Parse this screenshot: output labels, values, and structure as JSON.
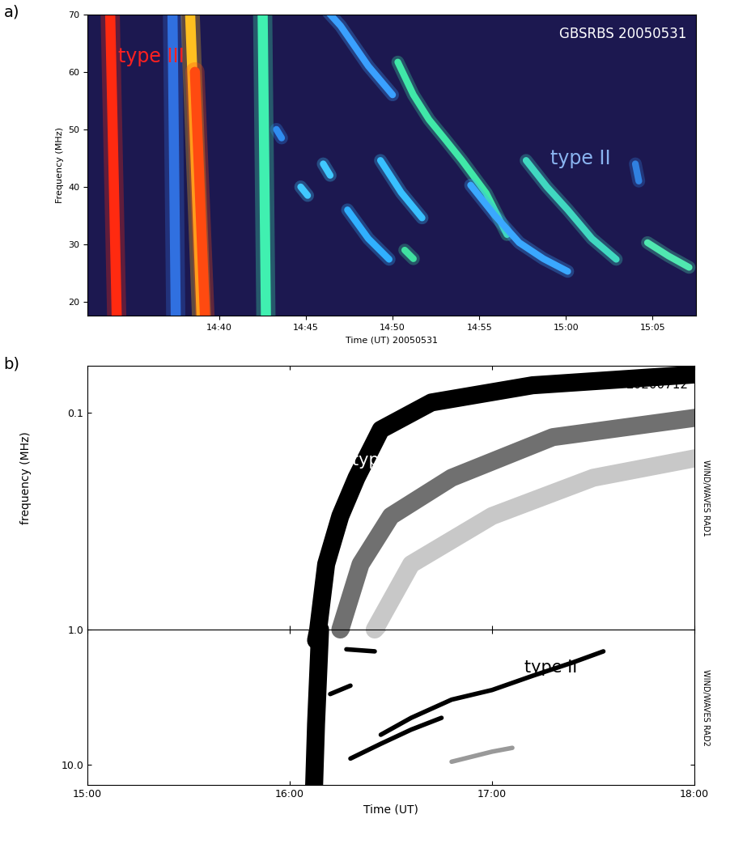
{
  "chart_data": [
    {
      "type": "line",
      "panel_label": "a)",
      "annotation": "GBSRBS 20050531",
      "xlabel": "Time (UT) 20050531",
      "ylabel": "Frequency (MHz)",
      "xlim": [
        32.4,
        67.5
      ],
      "xticks": [
        {
          "value": 40,
          "label": "14:40"
        },
        {
          "value": 45,
          "label": "14:45"
        },
        {
          "value": 50,
          "label": "14:50"
        },
        {
          "value": 55,
          "label": "14:55"
        },
        {
          "value": 60,
          "label": "15:00"
        },
        {
          "value": 65,
          "label": "15:05"
        }
      ],
      "ylim": [
        17.6,
        70
      ],
      "yticks": [
        20,
        30,
        40,
        50,
        60,
        70
      ],
      "bursts": [
        {
          "label": "type III",
          "series": [
            {
              "x": [
                37.3,
                37.5
              ],
              "y": [
                72,
                16
              ],
              "color": "#3070e0"
            },
            {
              "x": [
                33.7,
                34.1
              ],
              "y": [
                72,
                16
              ],
              "color": "#ff2a10"
            },
            {
              "x": [
                38.3,
                39.0
              ],
              "y": [
                72,
                16
              ],
              "color": "#ffc020"
            },
            {
              "x": [
                38.6,
                39.2
              ],
              "y": [
                60,
                16
              ],
              "color": "#ff4a10"
            },
            {
              "x": [
                42.5,
                42.7
              ],
              "y": [
                72,
                16
              ],
              "color": "#40f0b0"
            }
          ]
        },
        {
          "label": "type II",
          "series": [
            {
              "x": [
                45.8,
                47.0,
                48.6,
                50.0
              ],
              "y": [
                72,
                68,
                61,
                56
              ],
              "color": "#3aa0ff"
            },
            {
              "x": [
                50.3,
                51.2,
                52.1,
                53.1,
                54.0,
                55.4,
                56.6
              ],
              "y": [
                61.7,
                56,
                51.7,
                48,
                44.6,
                38.9,
                31.7
              ],
              "color": "#40e8a8"
            },
            {
              "x": [
                49.3,
                50.5,
                51.7
              ],
              "y": [
                44.6,
                39,
                34.6
              ],
              "color": "#38c0ff"
            },
            {
              "x": [
                54.5,
                55.9,
                57.3,
                58.7,
                60.1
              ],
              "y": [
                40.3,
                35,
                30.3,
                27.5,
                25.3
              ],
              "color": "#3aa8ff"
            },
            {
              "x": [
                57.7,
                58.9,
                60.1,
                61.5,
                62.9
              ],
              "y": [
                44.6,
                40,
                36,
                31,
                27.4
              ],
              "color": "#40d8c0"
            },
            {
              "x": [
                64.7,
                65.9,
                67.1
              ],
              "y": [
                30.3,
                28,
                26
              ],
              "color": "#50e8b0"
            },
            {
              "x": [
                47.4,
                48.6,
                49.8
              ],
              "y": [
                36,
                31,
                27.4
              ],
              "color": "#30b0ff"
            },
            {
              "x": [
                43.3,
                43.6
              ],
              "y": [
                50,
                48.5
              ],
              "color": "#2f8cf0"
            },
            {
              "x": [
                44.7,
                45.1
              ],
              "y": [
                40,
                38.5
              ],
              "color": "#40c8ff"
            },
            {
              "x": [
                46.0,
                46.4
              ],
              "y": [
                44,
                42
              ],
              "color": "#40c8ff"
            },
            {
              "x": [
                50.7,
                51.2
              ],
              "y": [
                29,
                27.5
              ],
              "color": "#40e0a0"
            },
            {
              "x": [
                64.0,
                64.2
              ],
              "y": [
                44,
                41
              ],
              "color": "#3080e0"
            }
          ]
        }
      ]
    },
    {
      "type": "line",
      "panel_label": "b)",
      "annotation": "20200712",
      "xlabel": "Time (UT)",
      "ylabel": "frequency (MHz)",
      "log": "y",
      "xlim": [
        15,
        18
      ],
      "xticks": [
        {
          "value": 15,
          "label": "15:00"
        },
        {
          "value": 16,
          "label": "16:00"
        },
        {
          "value": 17,
          "label": "17:00"
        },
        {
          "value": 18,
          "label": "18:00"
        }
      ],
      "panels": [
        {
          "right_label": "WIND/WAVES RAD1",
          "ylim": [
            1.0,
            0.061
          ],
          "yticks": [
            0.1
          ]
        },
        {
          "right_label": "WIND/WAVES RAD2",
          "ylim": [
            14.1,
            1.0
          ],
          "yticks": [
            1.0,
            10.0
          ]
        }
      ],
      "bursts": [
        {
          "label": "type III",
          "series": [
            {
              "x": [
                16.42,
                16.6,
                17.0,
                17.5,
                18.2
              ],
              "y": [
                1.0,
                0.5,
                0.3,
                0.2,
                0.15
              ],
              "color": "#c8c8c8"
            },
            {
              "x": [
                16.25,
                16.35,
                16.5,
                16.8,
                17.3,
                18.2
              ],
              "y": [
                1.0,
                0.5,
                0.3,
                0.2,
                0.13,
                0.1
              ],
              "color": "#707070"
            },
            {
              "x": [
                16.13,
                16.18,
                16.25,
                16.33,
                16.45,
                16.7,
                17.2,
                18.2
              ],
              "y": [
                1.2,
                0.5,
                0.3,
                0.2,
                0.12,
                0.09,
                0.075,
                0.065
              ],
              "color": "#000000"
            },
            {
              "x": [
                16.12,
                16.13,
                16.15
              ],
              "y": [
                15,
                5,
                1.0
              ],
              "color": "#000000"
            }
          ]
        },
        {
          "label": "type II",
          "series": [
            {
              "x": [
                16.45,
                16.6,
                16.8,
                17.0,
                17.2,
                17.4,
                17.55
              ],
              "y": [
                6.0,
                4.5,
                3.3,
                2.8,
                2.2,
                1.75,
                1.45
              ],
              "color": "#000000"
            },
            {
              "x": [
                16.3,
                16.45,
                16.6,
                16.75
              ],
              "y": [
                9.0,
                7.0,
                5.5,
                4.5
              ],
              "color": "#000000"
            },
            {
              "x": [
                16.8,
                17.0,
                17.1
              ],
              "y": [
                9.5,
                8.0,
                7.5
              ],
              "color": "#999999"
            },
            {
              "x": [
                16.28,
                16.42
              ],
              "y": [
                1.4,
                1.45
              ],
              "color": "#000000"
            },
            {
              "x": [
                16.2,
                16.3
              ],
              "y": [
                3.0,
                2.6
              ],
              "color": "#000000"
            }
          ]
        }
      ]
    }
  ]
}
